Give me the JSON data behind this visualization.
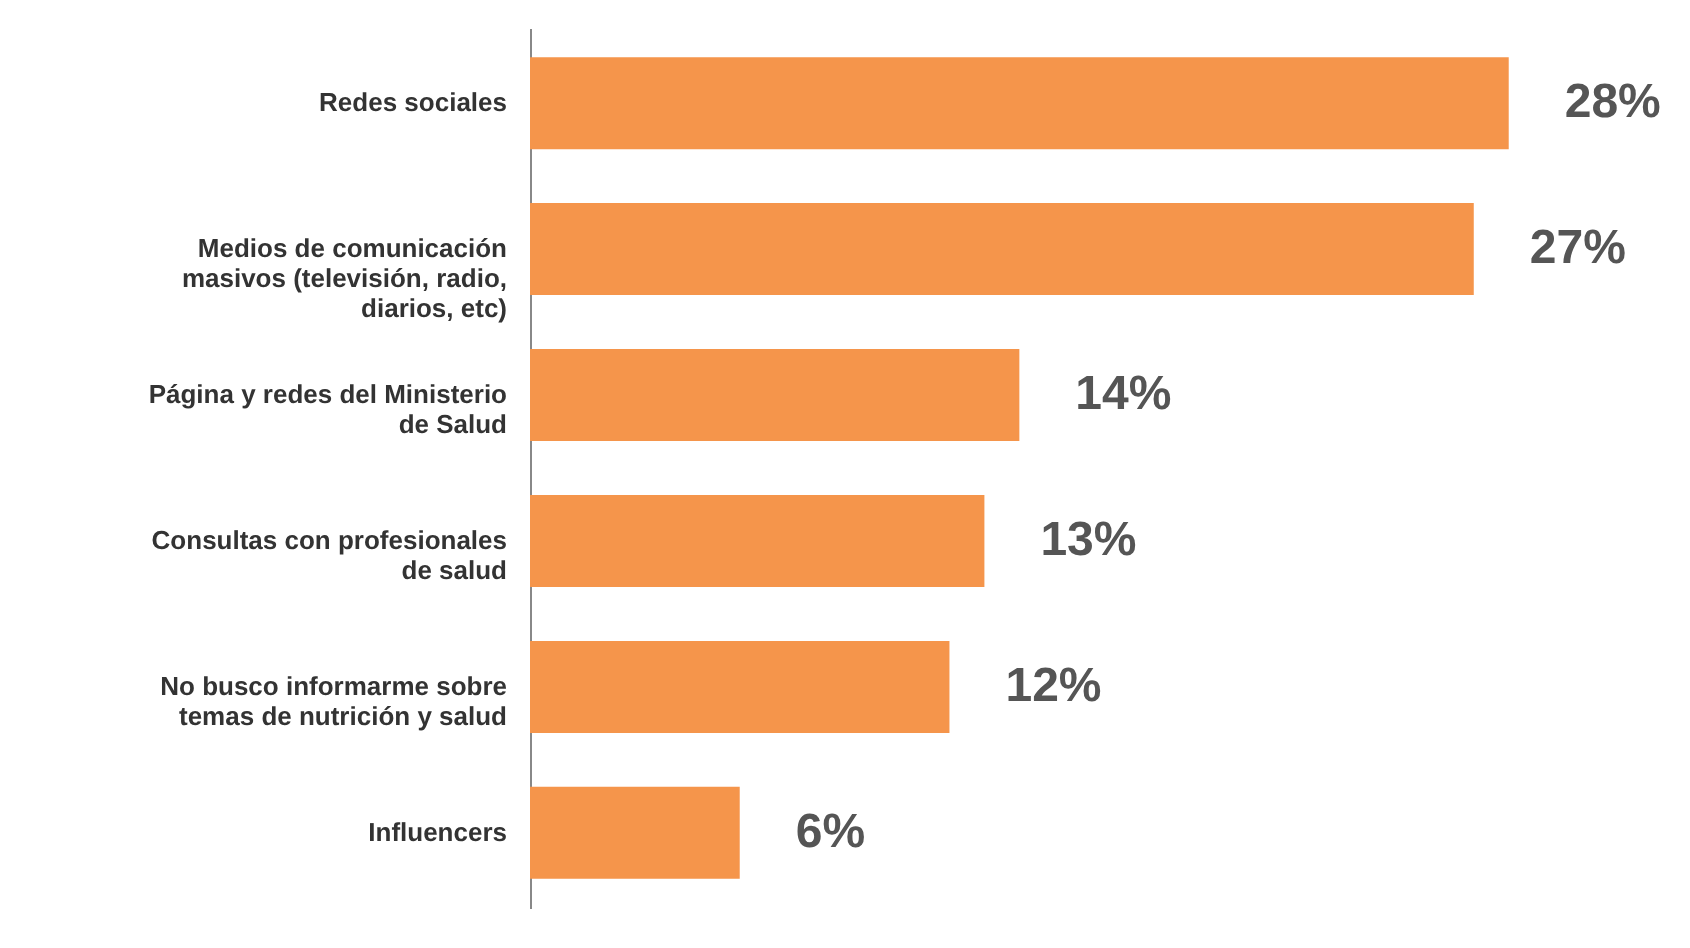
{
  "chart_data": {
    "type": "bar",
    "orientation": "horizontal",
    "categories": [
      "Redes sociales",
      "Medios de comunicación masivos (televisión, radio, diarios, etc)",
      "Página y redes del Ministerio de Salud",
      "Consultas con profesionales de salud",
      "No busco informarme sobre temas de nutrición y salud",
      "Influencers"
    ],
    "values": [
      28,
      27,
      14,
      13,
      12,
      6
    ],
    "value_labels": [
      "28%",
      "27%",
      "14%",
      "13%",
      "12%",
      "6%"
    ],
    "color": "#f5954b",
    "grid": false
  }
}
